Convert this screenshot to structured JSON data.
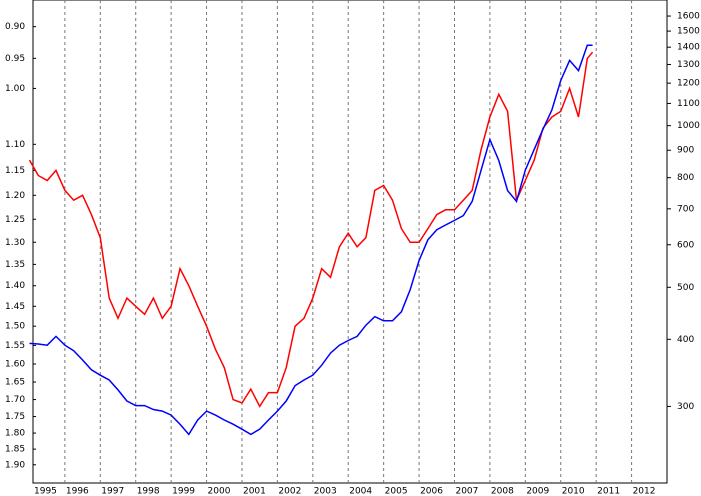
{
  "chart_data": {
    "type": "line",
    "x": [
      1995.0,
      1995.25,
      1995.5,
      1995.75,
      1996.0,
      1996.25,
      1996.5,
      1996.75,
      1997.0,
      1997.25,
      1997.5,
      1997.75,
      1998.0,
      1998.25,
      1998.5,
      1998.75,
      1999.0,
      1999.25,
      1999.5,
      1999.75,
      2000.0,
      2000.25,
      2000.5,
      2000.75,
      2001.0,
      2001.25,
      2001.5,
      2001.75,
      2002.0,
      2002.25,
      2002.5,
      2002.75,
      2003.0,
      2003.25,
      2003.5,
      2003.75,
      2004.0,
      2004.25,
      2004.5,
      2004.75,
      2005.0,
      2005.25,
      2005.5,
      2005.75,
      2006.0,
      2006.25,
      2006.5,
      2006.75,
      2007.0,
      2007.25,
      2007.5,
      2007.75,
      2008.0,
      2008.25,
      2008.5,
      2008.75,
      2009.0,
      2009.25,
      2009.5,
      2009.75,
      2010.0,
      2010.25,
      2010.5,
      2010.75,
      2010.9
    ],
    "series": [
      {
        "color": "#ff0000",
        "axis": "y",
        "values": [
          1.13,
          1.16,
          1.17,
          1.15,
          1.19,
          1.21,
          1.2,
          1.24,
          1.29,
          1.43,
          1.48,
          1.43,
          1.45,
          1.47,
          1.43,
          1.48,
          1.45,
          1.36,
          1.4,
          1.45,
          1.5,
          1.56,
          1.61,
          1.7,
          1.71,
          1.67,
          1.72,
          1.68,
          1.68,
          1.61,
          1.5,
          1.48,
          1.43,
          1.36,
          1.38,
          1.31,
          1.28,
          1.31,
          1.29,
          1.19,
          1.18,
          1.21,
          1.27,
          1.3,
          1.3,
          1.27,
          1.24,
          1.23,
          1.23,
          1.21,
          1.19,
          1.11,
          1.05,
          1.01,
          1.04,
          1.21,
          1.17,
          1.13,
          1.07,
          1.05,
          1.04,
          1.0,
          1.05,
          0.95,
          0.94
        ]
      },
      {
        "color": "#0000ff",
        "axis": "y2",
        "values": [
          393,
          392,
          390,
          405,
          390,
          381,
          366,
          351,
          343,
          336,
          322,
          307,
          301,
          301,
          296,
          294,
          289,
          278,
          266,
          283,
          294,
          289,
          283,
          278,
          272,
          266,
          272,
          283,
          294,
          307,
          328,
          336,
          343,
          358,
          377,
          390,
          398,
          405,
          425,
          441,
          433,
          433,
          450,
          495,
          561,
          613,
          640,
          653,
          666,
          680,
          723,
          826,
          942,
          861,
          757,
          723,
          826,
          903,
          985,
          1070,
          1213,
          1323,
          1266,
          1412,
          1412
        ]
      }
    ],
    "xlim": [
      1995.1,
      2013
    ],
    "xticks": [
      1995,
      1996,
      1997,
      1998,
      1999,
      2000,
      2001,
      2002,
      2003,
      2004,
      2005,
      2006,
      2007,
      2008,
      2009,
      2010,
      2011,
      2012
    ],
    "ylim": [
      0.86,
      1.96
    ],
    "y_inverted": true,
    "ylog": true,
    "yticks": [
      {
        "value": 0.9,
        "label": "0.90"
      },
      0.95,
      {
        "value": 1.0,
        "label": "1.00"
      },
      {
        "value": 1.1,
        "label": "1.10"
      },
      1.15,
      {
        "value": 1.2,
        "label": "1.20"
      },
      1.25,
      {
        "value": 1.3,
        "label": "1.30"
      },
      1.35,
      {
        "value": 1.4,
        "label": "1.40"
      },
      1.45,
      {
        "value": 1.5,
        "label": "1.50"
      },
      1.55,
      {
        "value": 1.6,
        "label": "1.60"
      },
      1.65,
      {
        "value": 1.7,
        "label": "1.70"
      },
      1.75,
      {
        "value": 1.8,
        "label": "1.80"
      },
      1.85,
      {
        "value": 1.9,
        "label": "1.90"
      }
    ],
    "y2lim": [
      216,
      1714
    ],
    "y2log": true,
    "y2ticks": [
      300,
      400,
      500,
      600,
      700,
      800,
      900,
      1000,
      1100,
      1200,
      1300,
      1400,
      1500,
      1600
    ],
    "grid": true
  }
}
